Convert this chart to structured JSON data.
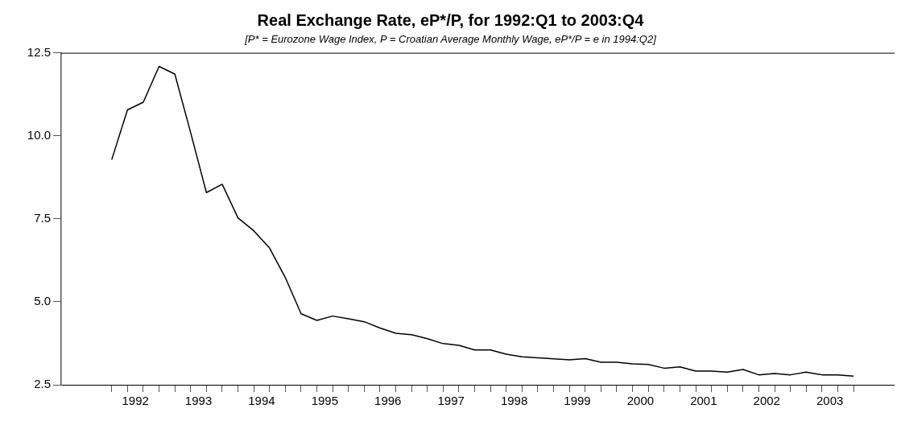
{
  "chart_data": {
    "type": "line",
    "title": "Real Exchange Rate, eP*/P, for 1992:Q1 to 2003:Q4",
    "subtitle": "[P* = Eurozone Wage Index, P = Croatian Average Monthly Wage, eP*/P = e in 1994:Q2]",
    "x": [
      1992,
      1992.25,
      1992.5,
      1992.75,
      1993,
      1993.25,
      1993.5,
      1993.75,
      1994,
      1994.25,
      1994.5,
      1994.75,
      1995,
      1995.25,
      1995.5,
      1995.75,
      1996,
      1996.25,
      1996.5,
      1996.75,
      1997,
      1997.25,
      1997.5,
      1997.75,
      1998,
      1998.25,
      1998.5,
      1998.75,
      1999,
      1999.25,
      1999.5,
      1999.75,
      2000,
      2000.25,
      2000.5,
      2000.75,
      2001,
      2001.25,
      2001.5,
      2001.75,
      2002,
      2002.25,
      2002.5,
      2002.75,
      2003,
      2003.25,
      2003.5,
      2003.75
    ],
    "series": [
      {
        "color": "#000000",
        "values": [
          9.28,
          10.78,
          11.01,
          12.09,
          11.86,
          10.1,
          8.29,
          8.54,
          7.53,
          7.14,
          6.62,
          5.73,
          4.64,
          4.44,
          4.57,
          4.49,
          4.4,
          4.21,
          4.05,
          4.01,
          3.89,
          3.74,
          3.69,
          3.55,
          3.55,
          3.42,
          3.34,
          3.31,
          3.28,
          3.25,
          3.29,
          3.18,
          3.18,
          3.13,
          3.11,
          3.0,
          3.04,
          2.91,
          2.91,
          2.88,
          2.96,
          2.8,
          2.84,
          2.8,
          2.88,
          2.8,
          2.8,
          2.76
        ]
      }
    ],
    "xlim": [
      1991.2,
      2004.4
    ],
    "xticks": [
      {
        "value": 1992,
        "label": null
      },
      {
        "value": 1992.25,
        "label": null
      },
      {
        "value": 1992.375,
        "label": "1992"
      },
      {
        "value": 1992.5,
        "label": null
      },
      {
        "value": 1992.75,
        "label": null
      },
      {
        "value": 1993,
        "label": null
      },
      {
        "value": 1993.25,
        "label": null
      },
      {
        "value": 1993.375,
        "label": "1993"
      },
      {
        "value": 1993.5,
        "label": null
      },
      {
        "value": 1993.75,
        "label": null
      },
      {
        "value": 1994,
        "label": null
      },
      {
        "value": 1994.25,
        "label": null
      },
      {
        "value": 1994.375,
        "label": "1994"
      },
      {
        "value": 1994.5,
        "label": null
      },
      {
        "value": 1994.75,
        "label": null
      },
      {
        "value": 1995,
        "label": null
      },
      {
        "value": 1995.25,
        "label": null
      },
      {
        "value": 1995.375,
        "label": "1995"
      },
      {
        "value": 1995.5,
        "label": null
      },
      {
        "value": 1995.75,
        "label": null
      },
      {
        "value": 1996,
        "label": null
      },
      {
        "value": 1996.25,
        "label": null
      },
      {
        "value": 1996.375,
        "label": "1996"
      },
      {
        "value": 1996.5,
        "label": null
      },
      {
        "value": 1996.75,
        "label": null
      },
      {
        "value": 1997,
        "label": null
      },
      {
        "value": 1997.25,
        "label": null
      },
      {
        "value": 1997.375,
        "label": "1997"
      },
      {
        "value": 1997.5,
        "label": null
      },
      {
        "value": 1997.75,
        "label": null
      },
      {
        "value": 1998,
        "label": null
      },
      {
        "value": 1998.25,
        "label": null
      },
      {
        "value": 1998.375,
        "label": "1998"
      },
      {
        "value": 1998.5,
        "label": null
      },
      {
        "value": 1998.75,
        "label": null
      },
      {
        "value": 1999,
        "label": null
      },
      {
        "value": 1999.25,
        "label": null
      },
      {
        "value": 1999.375,
        "label": "1999"
      },
      {
        "value": 1999.5,
        "label": null
      },
      {
        "value": 1999.75,
        "label": null
      },
      {
        "value": 2000,
        "label": null
      },
      {
        "value": 2000.25,
        "label": null
      },
      {
        "value": 2000.375,
        "label": "2000"
      },
      {
        "value": 2000.5,
        "label": null
      },
      {
        "value": 2000.75,
        "label": null
      },
      {
        "value": 2001,
        "label": null
      },
      {
        "value": 2001.25,
        "label": null
      },
      {
        "value": 2001.375,
        "label": "2001"
      },
      {
        "value": 2001.5,
        "label": null
      },
      {
        "value": 2001.75,
        "label": null
      },
      {
        "value": 2002,
        "label": null
      },
      {
        "value": 2002.25,
        "label": null
      },
      {
        "value": 2002.375,
        "label": "2002"
      },
      {
        "value": 2002.5,
        "label": null
      },
      {
        "value": 2002.75,
        "label": null
      },
      {
        "value": 2003,
        "label": null
      },
      {
        "value": 2003.25,
        "label": null
      },
      {
        "value": 2003.375,
        "label": "2003"
      },
      {
        "value": 2003.5,
        "label": null
      },
      {
        "value": 2003.75,
        "label": null
      }
    ],
    "ylim": [
      2.5,
      12.5
    ],
    "yticks": [
      {
        "value": 2.5,
        "label": "2.5"
      },
      {
        "value": 5,
        "label": "5.0"
      },
      {
        "value": 7.5,
        "label": "7.5"
      },
      {
        "value": 10,
        "label": "10.0"
      },
      {
        "value": 12.5,
        "label": "12.5"
      }
    ],
    "grid": false,
    "legend": false,
    "marker": "none",
    "line_style": "solid"
  }
}
